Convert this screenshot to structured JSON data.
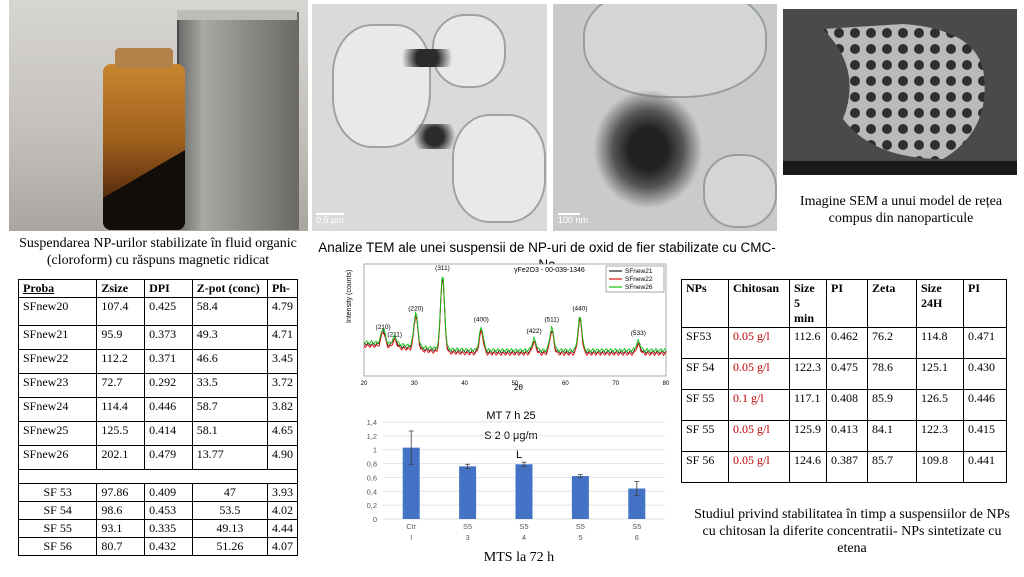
{
  "captions": {
    "bottle": "Suspendarea NP-urilor stabilizate în fluid organic (cloroform) cu răspuns magnetic ridicat",
    "tem": "Analize TEM ale unei suspensii de NP-uri de oxid de fier stabilizate cu CMC-Na",
    "sem": "Imagine SEM a unui model de rețea compus din nanoparticule",
    "stability": "Studiul privind stabilitatea în timp a suspensiilor de NPs cu chitosan la diferite concentratii- NPs sintetizate cu etena",
    "mts": "MTS la 72 h"
  },
  "tem": {
    "scale_left": "0.5 μm",
    "scale_right": "100 nm"
  },
  "table_left": {
    "headers": [
      "Proba",
      "Zsize",
      "DPI",
      "Z-pot (conc)",
      "Ph-"
    ],
    "rows": [
      [
        "SFnew20",
        "107.4",
        "0.425",
        "58.4",
        "4.79"
      ],
      [
        "SFnew21",
        "95.9",
        "0.373",
        "49.3",
        "4.71"
      ],
      [
        "SFnew22",
        "112.2",
        "0.371",
        "46.6",
        "3.45"
      ],
      [
        "SFnew23",
        "72.7",
        "0.292",
        "33.5",
        "3.72"
      ],
      [
        "SFnew24",
        "114.4",
        "0.446",
        "58.7",
        "3.82"
      ],
      [
        "SFnew25",
        "125.5",
        "0.414",
        "58.1",
        "4.65"
      ],
      [
        "SFnew26",
        "202.1",
        "0.479",
        "13.77",
        "4.90"
      ],
      [
        "",
        "",
        "",
        "",
        ""
      ],
      [
        "SF 53",
        "97.86",
        "0.409",
        "47",
        "3.93"
      ],
      [
        "SF 54",
        "98.6",
        "0.453",
        "53.5",
        "4.02"
      ],
      [
        "SF 55",
        "93.1",
        "0.335",
        "49.13",
        "4.44"
      ],
      [
        "SF 56",
        "80.7",
        "0.432",
        "51.26",
        "4.07"
      ]
    ]
  },
  "table_right": {
    "headers": [
      "NPs",
      "Chitosan",
      "Size 5 min",
      "PI",
      "Zeta",
      "Size 24H",
      "PI"
    ],
    "rows": [
      [
        "SF53",
        "0.05 g/l",
        "112.6",
        "0.462",
        "76.2",
        "114.8",
        "0.471"
      ],
      [
        "SF 54",
        "0.05 g/l",
        "122.3",
        "0.475",
        "78.6",
        "125.1",
        "0.430"
      ],
      [
        "SF 55",
        "0.1 g/l",
        "117.1",
        "0.408",
        "85.9",
        "126.5",
        "0.446"
      ],
      [
        "SF 55",
        "0.05 g/l",
        "125.9",
        "0.413",
        "84.1",
        "122.3",
        "0.415"
      ],
      [
        "SF 56",
        "0.05 g/l",
        "124.6",
        "0.387",
        "85.7",
        "109.8",
        "0.441"
      ]
    ]
  },
  "chart_data": [
    {
      "type": "line",
      "title": "",
      "legend_note": "γFe2O3 - 00-039-1346",
      "xlabel": "2θ",
      "ylabel": "Intensity (counts)",
      "xlim": [
        20,
        80
      ],
      "x_ticks": [
        "20",
        "30",
        "40",
        "50",
        "60",
        "70",
        "80"
      ],
      "peaks": [
        "(210)",
        "(211)",
        "(220)",
        "(311)",
        "(400)",
        "(422)",
        "(511)",
        "(440)",
        "(533)"
      ],
      "series": [
        {
          "name": "SFnew21",
          "color": "#222222"
        },
        {
          "name": "SFnew22",
          "color": "#e01010"
        },
        {
          "name": "SFnew26",
          "color": "#10c010"
        }
      ]
    },
    {
      "type": "bar",
      "title_lines": [
        "MT 7 h 25",
        "S   2   0   μg/m",
        "L"
      ],
      "categories": [
        "Ctr",
        "S5",
        "S5",
        "S5",
        "S5"
      ],
      "sub_labels": [
        "l",
        "3",
        "4",
        "5",
        "6"
      ],
      "values": [
        1.03,
        0.76,
        0.79,
        0.62,
        0.44
      ],
      "errors": [
        0.24,
        0.03,
        0.03,
        0.02,
        0.1
      ],
      "ylim": [
        0,
        1.4
      ],
      "y_ticks": [
        "0",
        "0,2",
        "0,4",
        "0,6",
        "0,8",
        "1",
        "1,2",
        "1,4"
      ],
      "bar_color": "#4472c4"
    }
  ]
}
